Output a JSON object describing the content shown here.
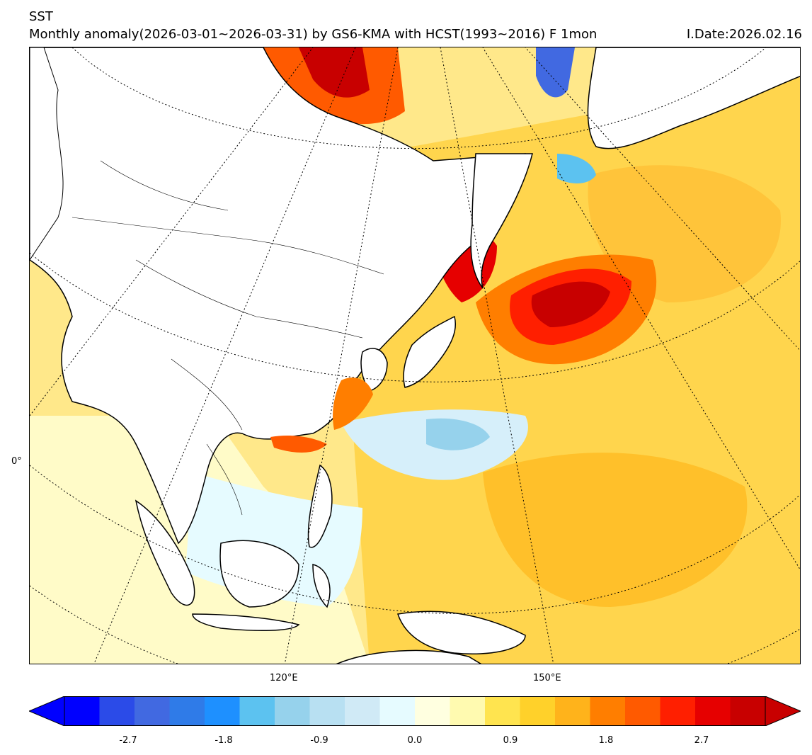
{
  "header": {
    "variable": "SST",
    "subtitle": "Monthly anomaly(2026-03-01~2026-03-31) by GS6-KMA with HCST(1993~2016) F 1mon",
    "issue_date": "I.Date:2026.02.16"
  },
  "map": {
    "region": "East Asia / Western North Pacific",
    "lat_labels": [
      "0°"
    ],
    "lon_labels": [
      "120°E",
      "150°E"
    ],
    "features": [
      "land",
      "coastlines",
      "country-borders",
      "graticule"
    ]
  },
  "colorbar": {
    "ticks": [
      "-2.7",
      "-1.8",
      "-0.9",
      "0.0",
      "0.9",
      "1.8",
      "2.7"
    ],
    "tick_values": [
      -2.7,
      -1.8,
      -0.9,
      0.0,
      0.9,
      1.8,
      2.7
    ],
    "min": -3.3,
    "max": 3.3,
    "colors": [
      "#0000ff",
      "#2b4be8",
      "#4169e1",
      "#2f7be8",
      "#1e90ff",
      "#5cc2f0",
      "#96d2ec",
      "#b8e0f2",
      "#d0eaf6",
      "#e6fbff",
      "#ffffe0",
      "#fffab0",
      "#ffe44f",
      "#ffd12a",
      "#ffb31b",
      "#ff7e00",
      "#ff5a00",
      "#ff1f00",
      "#e60000",
      "#c80000"
    ],
    "extend": "both"
  }
}
